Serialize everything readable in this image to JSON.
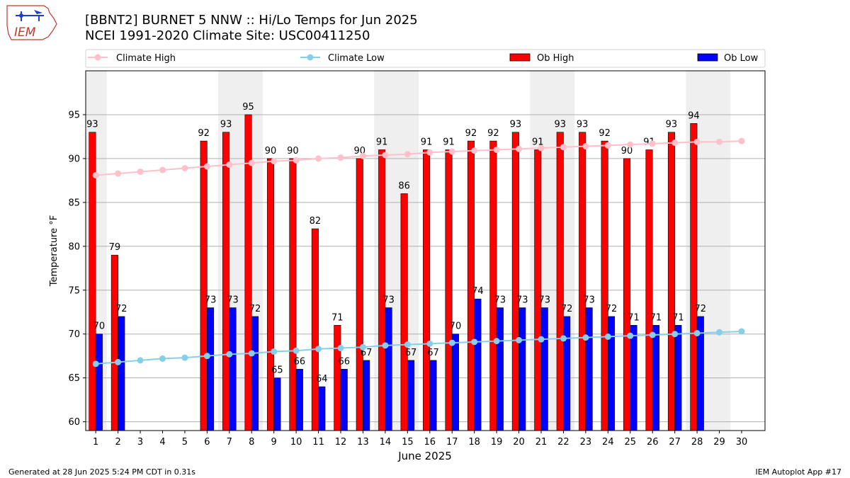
{
  "logo": {
    "text": "IEM"
  },
  "title": {
    "line1": "[BBNT2] BURNET 5 NNW :: Hi/Lo Temps for Jun 2025",
    "line2": "NCEI 1991-2020 Climate Site: USC00411250"
  },
  "footer": {
    "left": "Generated at 28 Jun 2025 5:24 PM CDT in 0.31s",
    "right": "IEM Autoplot App #17"
  },
  "colors": {
    "ob_high": "#ff0000",
    "ob_low": "#0000ff",
    "climate_high": "#ffc0cb",
    "climate_low": "#87ceeb",
    "weekend_band": "#efefef",
    "grid": "#b0b0b0"
  },
  "chart_data": {
    "type": "bar",
    "xlabel": "June 2025",
    "ylabel": "Temperature °F",
    "ylim": [
      59,
      100
    ],
    "yticks": [
      60,
      65,
      70,
      75,
      80,
      85,
      90,
      95
    ],
    "grid": "horizontal",
    "legend_position": "top",
    "categories": [
      "1",
      "2",
      "3",
      "4",
      "5",
      "6",
      "7",
      "8",
      "9",
      "10",
      "11",
      "12",
      "13",
      "14",
      "15",
      "16",
      "17",
      "18",
      "19",
      "20",
      "21",
      "22",
      "23",
      "24",
      "25",
      "26",
      "27",
      "28",
      "29",
      "30"
    ],
    "weekend_bands": [
      [
        1,
        1
      ],
      [
        7,
        8
      ],
      [
        14,
        15
      ],
      [
        21,
        22
      ],
      [
        28,
        29
      ]
    ],
    "series": [
      {
        "name": "Climate High",
        "kind": "line",
        "values": [
          88.1,
          88.3,
          88.5,
          88.7,
          88.9,
          89.1,
          89.3,
          89.5,
          89.7,
          89.8,
          90.0,
          90.1,
          90.3,
          90.4,
          90.5,
          90.7,
          90.8,
          90.9,
          91.0,
          91.1,
          91.2,
          91.3,
          91.4,
          91.5,
          91.6,
          91.7,
          91.8,
          91.9,
          91.9,
          92.0
        ]
      },
      {
        "name": "Climate Low",
        "kind": "line",
        "values": [
          66.6,
          66.8,
          67.0,
          67.2,
          67.3,
          67.5,
          67.7,
          67.8,
          68.0,
          68.1,
          68.3,
          68.4,
          68.5,
          68.7,
          68.8,
          68.9,
          69.0,
          69.1,
          69.2,
          69.3,
          69.4,
          69.5,
          69.6,
          69.7,
          69.8,
          69.9,
          70.0,
          70.1,
          70.2,
          70.3
        ]
      },
      {
        "name": "Ob High",
        "kind": "bar",
        "values": [
          93,
          79,
          null,
          null,
          null,
          92,
          93,
          95,
          90,
          90,
          82,
          71,
          90,
          91,
          86,
          91,
          91,
          92,
          92,
          93,
          91,
          93,
          93,
          92,
          90,
          91,
          93,
          94,
          null,
          null
        ]
      },
      {
        "name": "Ob Low",
        "kind": "bar",
        "values": [
          70,
          72,
          null,
          null,
          null,
          73,
          73,
          72,
          65,
          66,
          64,
          66,
          67,
          73,
          67,
          67,
          70,
          74,
          73,
          73,
          73,
          72,
          73,
          72,
          71,
          71,
          71,
          72,
          null,
          null
        ]
      }
    ]
  }
}
